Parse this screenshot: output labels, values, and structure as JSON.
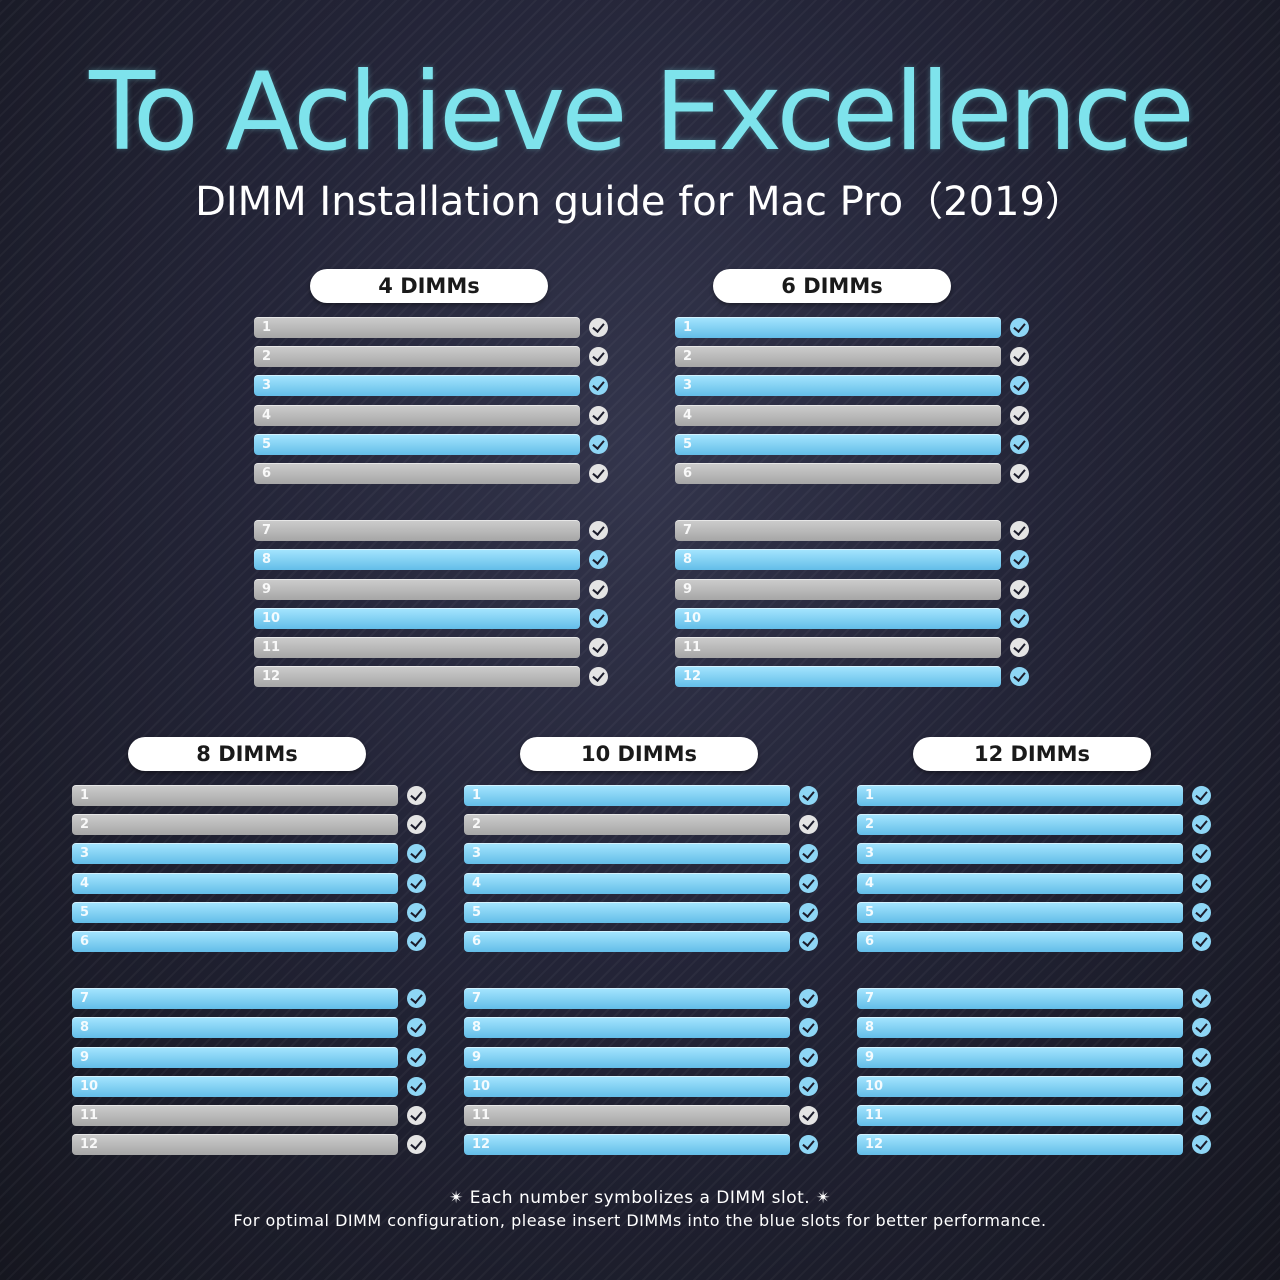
{
  "title": "To Achieve Excellence",
  "subtitle": "DIMM Installation guide for Mac Pro（2019）",
  "colors": {
    "title": "#7ee3ec",
    "blue_slot": "#7fd0f5",
    "gray_slot": "#b9b9b9",
    "background": "#1c1d2c"
  },
  "icons": {
    "slot_status": "check-circle-icon"
  },
  "configs": [
    {
      "label": "4 DIMMs",
      "slots": [
        {
          "num": "1",
          "blue": false
        },
        {
          "num": "2",
          "blue": false
        },
        {
          "num": "3",
          "blue": true
        },
        {
          "num": "4",
          "blue": false
        },
        {
          "num": "5",
          "blue": true
        },
        {
          "num": "6",
          "blue": false
        },
        {
          "num": "7",
          "blue": false
        },
        {
          "num": "8",
          "blue": true
        },
        {
          "num": "9",
          "blue": false
        },
        {
          "num": "10",
          "blue": true
        },
        {
          "num": "11",
          "blue": false
        },
        {
          "num": "12",
          "blue": false
        }
      ]
    },
    {
      "label": "6 DIMMs",
      "slots": [
        {
          "num": "1",
          "blue": true
        },
        {
          "num": "2",
          "blue": false
        },
        {
          "num": "3",
          "blue": true
        },
        {
          "num": "4",
          "blue": false
        },
        {
          "num": "5",
          "blue": true
        },
        {
          "num": "6",
          "blue": false
        },
        {
          "num": "7",
          "blue": false
        },
        {
          "num": "8",
          "blue": true
        },
        {
          "num": "9",
          "blue": false
        },
        {
          "num": "10",
          "blue": true
        },
        {
          "num": "11",
          "blue": false
        },
        {
          "num": "12",
          "blue": true
        }
      ]
    },
    {
      "label": "8 DIMMs",
      "slots": [
        {
          "num": "1",
          "blue": false
        },
        {
          "num": "2",
          "blue": false
        },
        {
          "num": "3",
          "blue": true
        },
        {
          "num": "4",
          "blue": true
        },
        {
          "num": "5",
          "blue": true
        },
        {
          "num": "6",
          "blue": true
        },
        {
          "num": "7",
          "blue": true
        },
        {
          "num": "8",
          "blue": true
        },
        {
          "num": "9",
          "blue": true
        },
        {
          "num": "10",
          "blue": true
        },
        {
          "num": "11",
          "blue": false
        },
        {
          "num": "12",
          "blue": false
        }
      ]
    },
    {
      "label": "10 DIMMs",
      "slots": [
        {
          "num": "1",
          "blue": true
        },
        {
          "num": "2",
          "blue": false
        },
        {
          "num": "3",
          "blue": true
        },
        {
          "num": "4",
          "blue": true
        },
        {
          "num": "5",
          "blue": true
        },
        {
          "num": "6",
          "blue": true
        },
        {
          "num": "7",
          "blue": true
        },
        {
          "num": "8",
          "blue": true
        },
        {
          "num": "9",
          "blue": true
        },
        {
          "num": "10",
          "blue": true
        },
        {
          "num": "11",
          "blue": false
        },
        {
          "num": "12",
          "blue": true
        }
      ]
    },
    {
      "label": "12 DIMMs",
      "slots": [
        {
          "num": "1",
          "blue": true
        },
        {
          "num": "2",
          "blue": true
        },
        {
          "num": "3",
          "blue": true
        },
        {
          "num": "4",
          "blue": true
        },
        {
          "num": "5",
          "blue": true
        },
        {
          "num": "6",
          "blue": true
        },
        {
          "num": "7",
          "blue": true
        },
        {
          "num": "8",
          "blue": true
        },
        {
          "num": "9",
          "blue": true
        },
        {
          "num": "10",
          "blue": true
        },
        {
          "num": "11",
          "blue": true
        },
        {
          "num": "12",
          "blue": true
        }
      ]
    }
  ],
  "footer": {
    "note": "✴ Each number symbolizes a DIMM slot. ✴",
    "tip": "For optimal DIMM configuration, please insert DIMMs into the blue slots for better performance."
  }
}
